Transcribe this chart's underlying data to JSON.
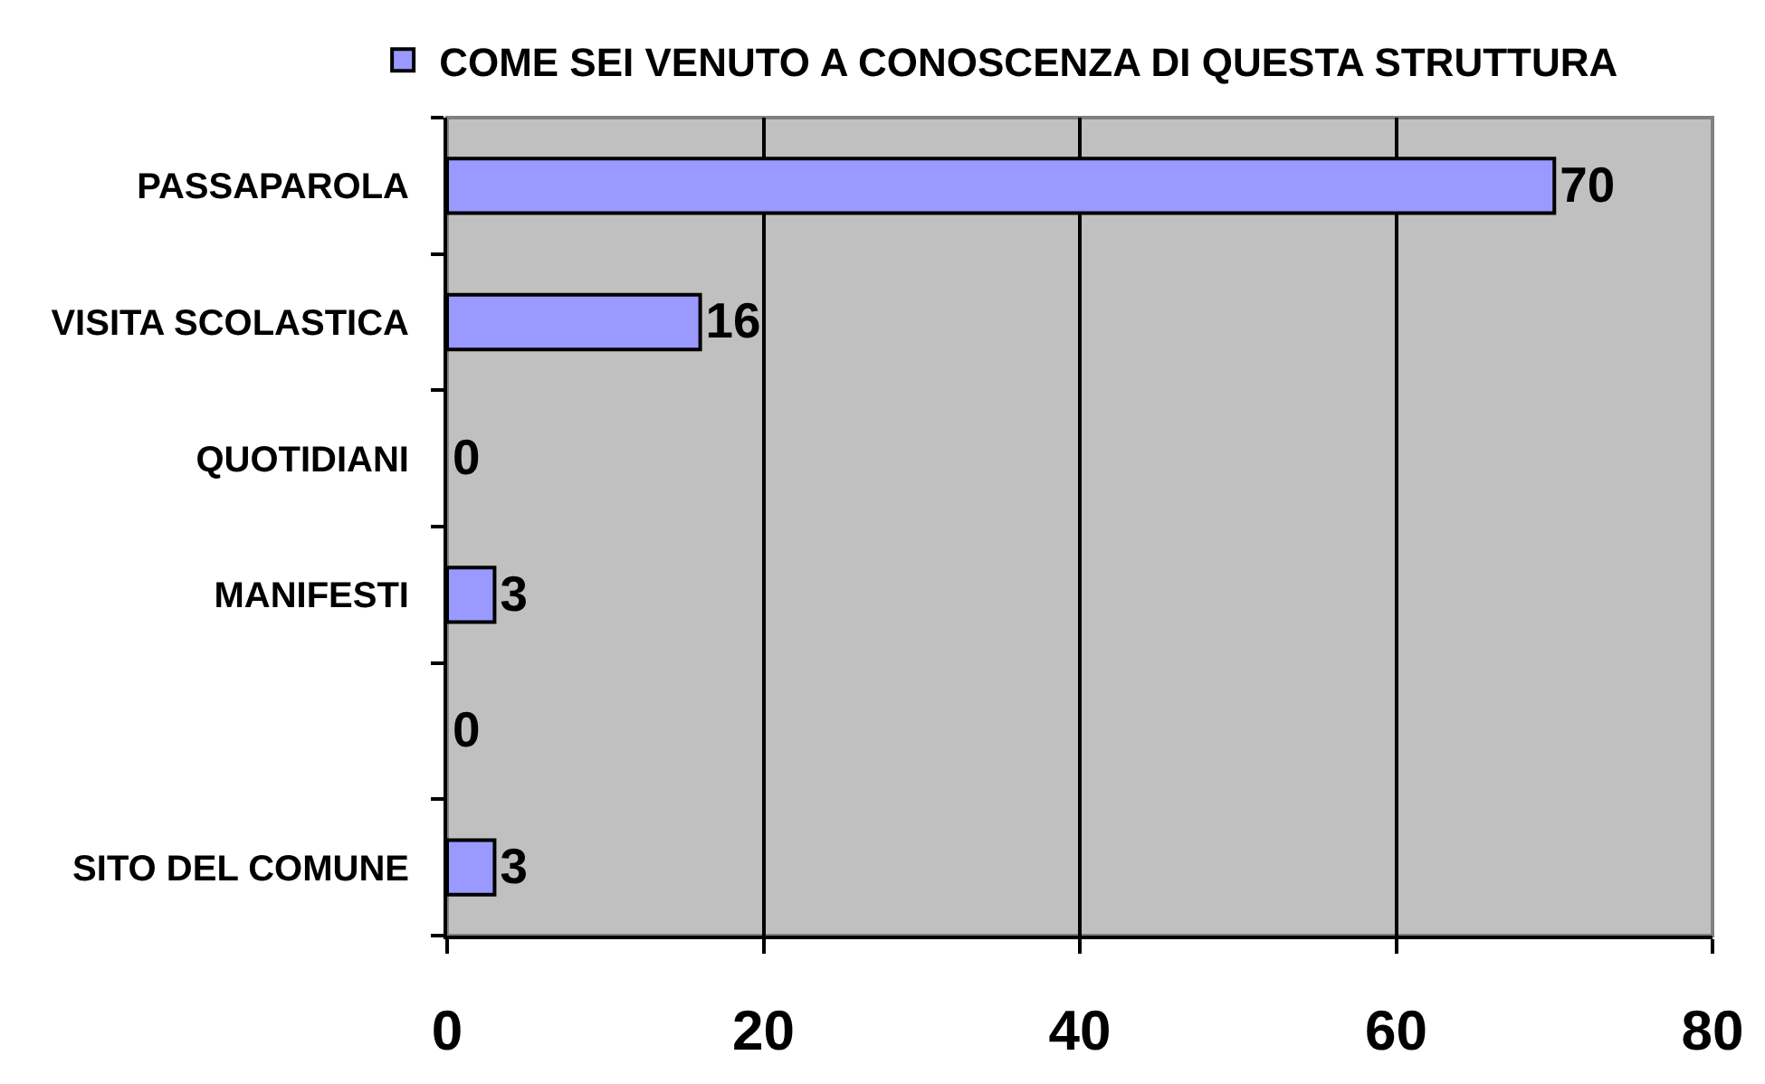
{
  "chart_data": {
    "type": "bar",
    "orientation": "horizontal",
    "categories": [
      "PASSAPAROLA",
      "VISITA SCOLASTICA",
      "QUOTIDIANI",
      "MANIFESTI",
      null,
      "SITO DEL COMUNE"
    ],
    "series": [
      {
        "name": "COME SEI VENUTO A CONOSCENZA DI QUESTA STRUTTURA",
        "color": "#9999ff",
        "values": [
          70,
          16,
          0,
          3,
          0,
          3
        ]
      }
    ],
    "xlim": [
      0,
      80
    ],
    "xticks": [
      0,
      20,
      40,
      60,
      80
    ],
    "grid": "x",
    "legend": "top",
    "data_labels": true
  }
}
